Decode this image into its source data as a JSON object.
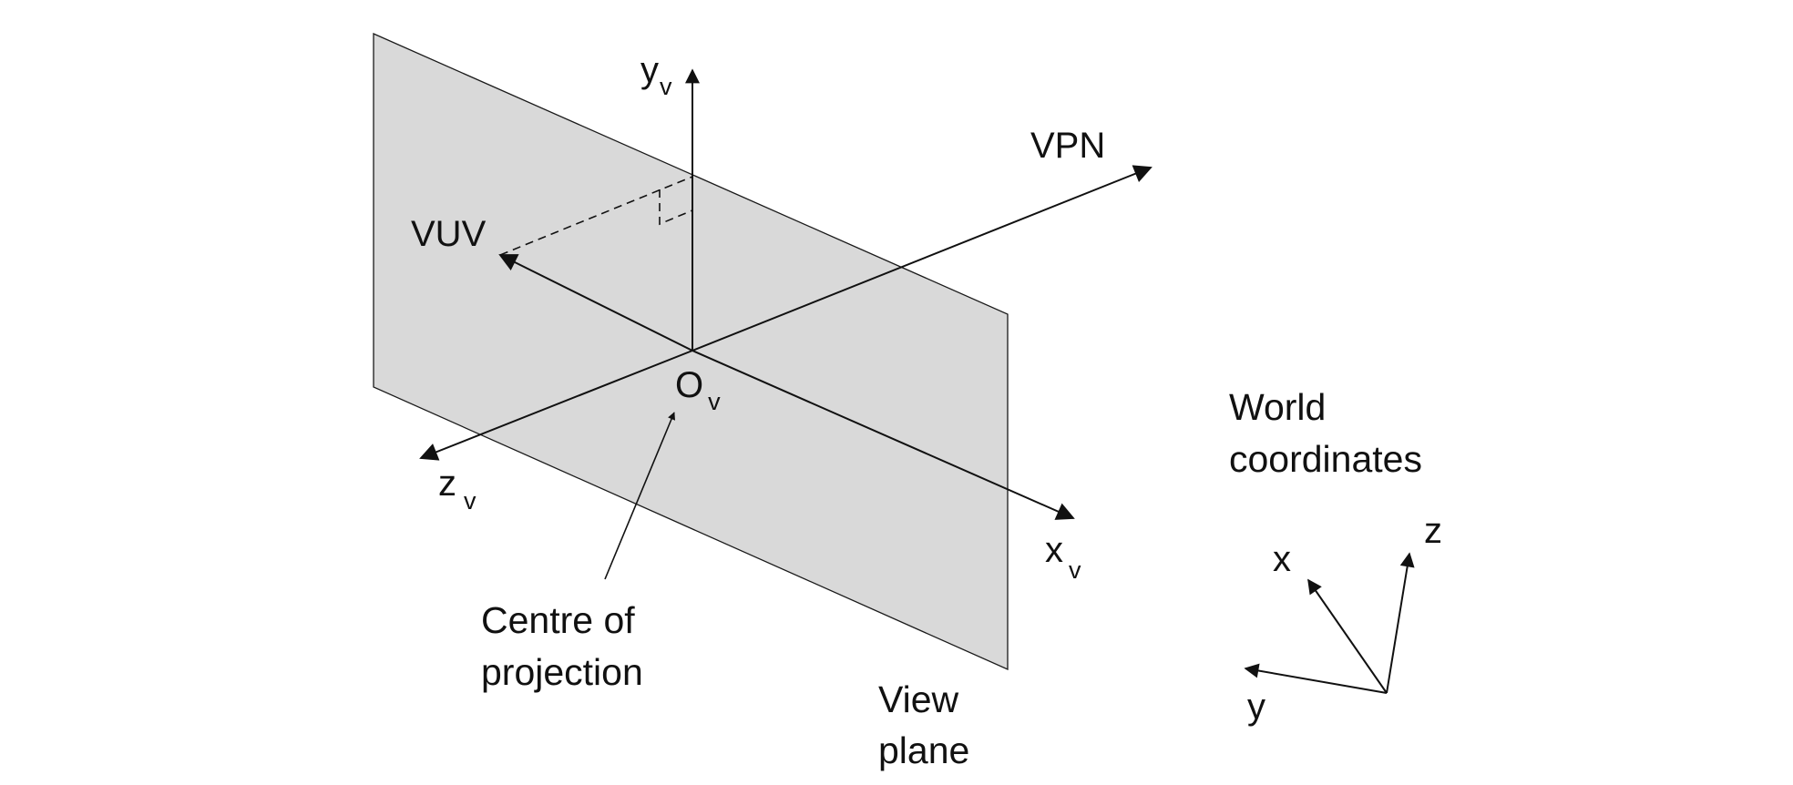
{
  "view_plane": {
    "fill_color": "#d9d9d9",
    "line_color": "#1a1a1a"
  },
  "axes": {
    "yv": {
      "main": "y",
      "subscript": "v"
    },
    "xv": {
      "main": "x",
      "subscript": "v"
    },
    "zv": {
      "main": "z",
      "subscript": "v"
    },
    "vpn": "VPN",
    "vuv": "VUV",
    "origin": {
      "main": "O",
      "subscript": "v"
    }
  },
  "annotations": {
    "centre_of_projection": [
      "Centre of",
      "projection"
    ],
    "view_plane": [
      "View",
      "plane"
    ],
    "world_coordinates": [
      "World",
      "coordinates"
    ]
  },
  "world_axes": {
    "x": "x",
    "y": "y",
    "z": "z"
  }
}
